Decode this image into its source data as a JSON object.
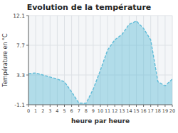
{
  "chart_data": {
    "type": "area",
    "title": "Evolution de la température",
    "x_label": "heure par heure",
    "y_label": "Température en °C",
    "x": [
      0,
      1,
      2,
      3,
      4,
      5,
      6,
      7,
      8,
      9,
      10,
      11,
      12,
      13,
      14,
      15,
      16,
      17,
      18,
      19,
      20
    ],
    "values": [
      3.5,
      3.6,
      3.3,
      3.0,
      2.7,
      2.3,
      0.8,
      -0.85,
      -0.9,
      1.2,
      4.0,
      7.0,
      8.5,
      9.3,
      10.8,
      11.3,
      10.2,
      8.5,
      2.3,
      1.7,
      2.7
    ],
    "color": "#60bcd8",
    "line_style": "dashed",
    "xlim": [
      0,
      20
    ],
    "xticks": [
      0,
      1,
      2,
      3,
      4,
      5,
      6,
      7,
      8,
      9,
      10,
      11,
      12,
      13,
      14,
      15,
      16,
      17,
      18,
      19,
      20
    ],
    "ylim": [
      -1.1,
      12.1
    ],
    "yticks": [
      -1.1,
      3.3,
      7.7,
      12.1
    ],
    "grid": true
  }
}
